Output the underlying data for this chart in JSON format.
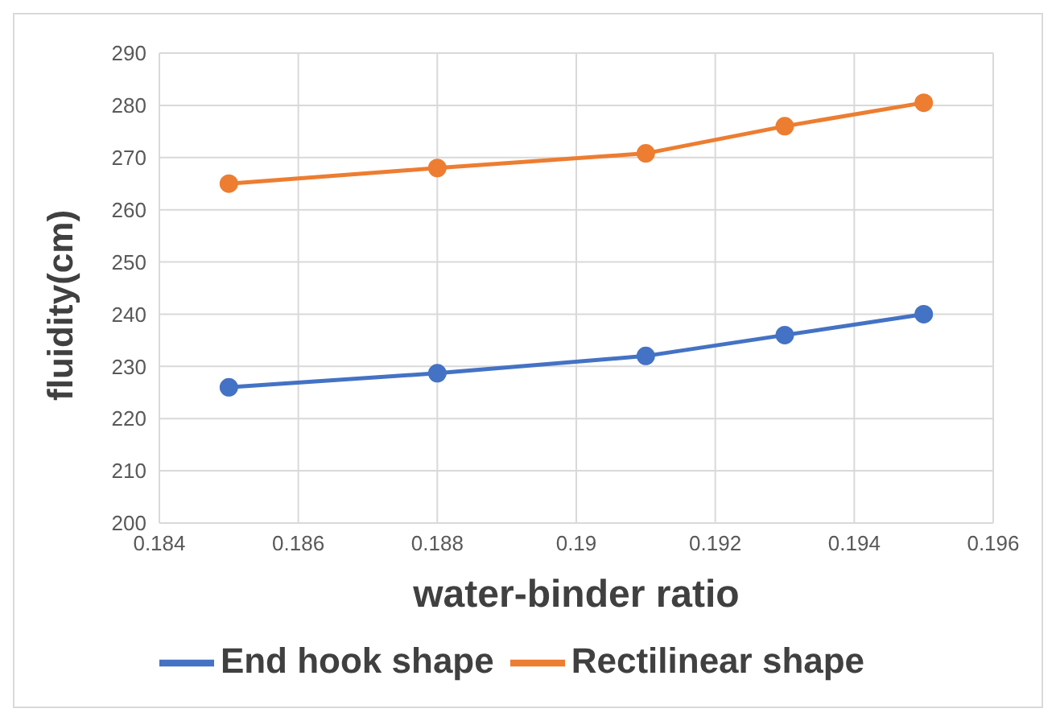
{
  "chart_data": {
    "type": "line",
    "xlabel": "water-binder ratio",
    "ylabel": "fluidity(cm)",
    "xlim": [
      0.184,
      0.196
    ],
    "xticks": [
      0.184,
      0.186,
      0.188,
      0.19,
      0.192,
      0.194,
      0.196
    ],
    "ylim": [
      200,
      290
    ],
    "yticks": [
      200,
      210,
      220,
      230,
      240,
      250,
      260,
      270,
      280,
      290
    ],
    "x": [
      0.185,
      0.188,
      0.191,
      0.193,
      0.195
    ],
    "series": [
      {
        "name": "End hook shape",
        "color": "#4472c4",
        "values": [
          226,
          228.7,
          232,
          236,
          240
        ]
      },
      {
        "name": "Rectilinear shape",
        "color": "#ed7d31",
        "values": [
          265,
          268,
          270.8,
          276,
          280.5
        ]
      }
    ],
    "grid": true,
    "legend": "bottom",
    "marker": "circle",
    "line_style": "solid"
  }
}
